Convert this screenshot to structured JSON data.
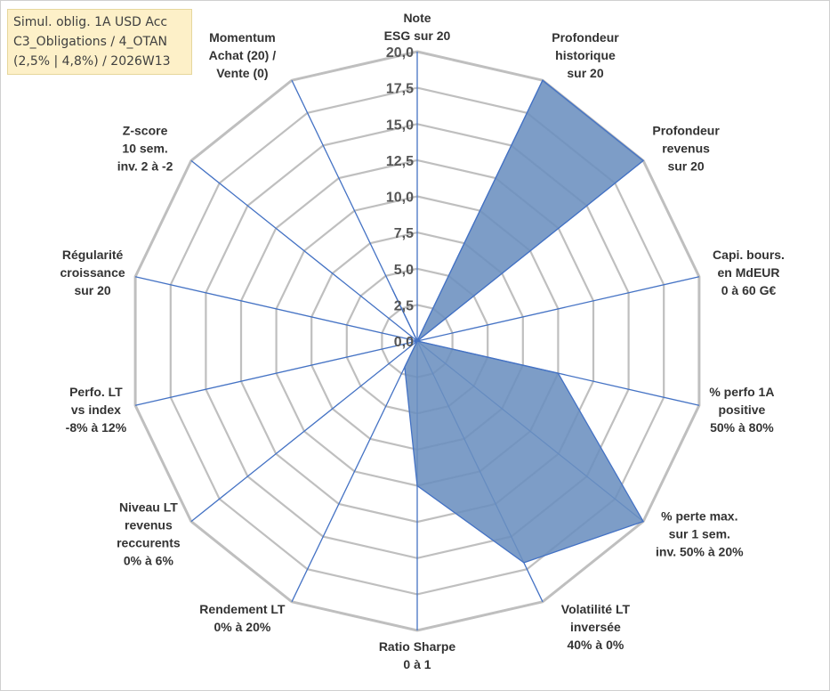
{
  "title": {
    "line1": "Simul. oblig. 1A USD Acc",
    "line2": "C3_Obligations / 4_OTAN",
    "line3": "(2,5% | 4,8%) / 2026W13"
  },
  "chart_data": {
    "type": "radar",
    "rmin": 0,
    "rmax": 20,
    "ticks": [
      "0,0",
      "2,5",
      "5,0",
      "7,5",
      "10,0",
      "12,5",
      "15,0",
      "17,5",
      "20,0"
    ],
    "grid": true,
    "legend": "none",
    "fill_color": "#6b8fbf",
    "line_color": "#4472c4",
    "grid_color": "#bfbfbf",
    "axes": [
      {
        "label": [
          "Note",
          "ESG sur 20"
        ],
        "value": 0
      },
      {
        "label": [
          "Profondeur",
          "historique",
          "sur 20"
        ],
        "value": 20
      },
      {
        "label": [
          "Profondeur",
          "revenus",
          "sur 20"
        ],
        "value": 20
      },
      {
        "label": [
          "Capi. bours.",
          "en MdEUR",
          "0 à 60 G€"
        ],
        "value": 0
      },
      {
        "label": [
          "% perfo 1A",
          "positive",
          "50% à 80%"
        ],
        "value": 10
      },
      {
        "label": [
          "% perte max.",
          "sur 1 sem.",
          "inv. 50% à 20%"
        ],
        "value": 20
      },
      {
        "label": [
          "Volatilité LT",
          "inversée",
          "40% à 0%"
        ],
        "value": 17
      },
      {
        "label": [
          "Ratio Sharpe",
          "0 à 1"
        ],
        "value": 10
      },
      {
        "label": [
          "Rendement LT",
          "0% à 20%"
        ],
        "value": 2
      },
      {
        "label": [
          "Niveau LT",
          "revenus",
          "reccurents",
          "0% à 6%"
        ],
        "value": 0
      },
      {
        "label": [
          "Perfo. LT",
          "vs index",
          "-8% à 12%"
        ],
        "value": 0
      },
      {
        "label": [
          "Régularité",
          "croissance",
          "sur 20"
        ],
        "value": 0
      },
      {
        "label": [
          "Z-score",
          "10 sem.",
          "inv. 2 à -2"
        ],
        "value": 0
      },
      {
        "label": [
          "Momentum",
          "Achat (20) /",
          "Vente (0)"
        ],
        "value": 4
      }
    ]
  }
}
